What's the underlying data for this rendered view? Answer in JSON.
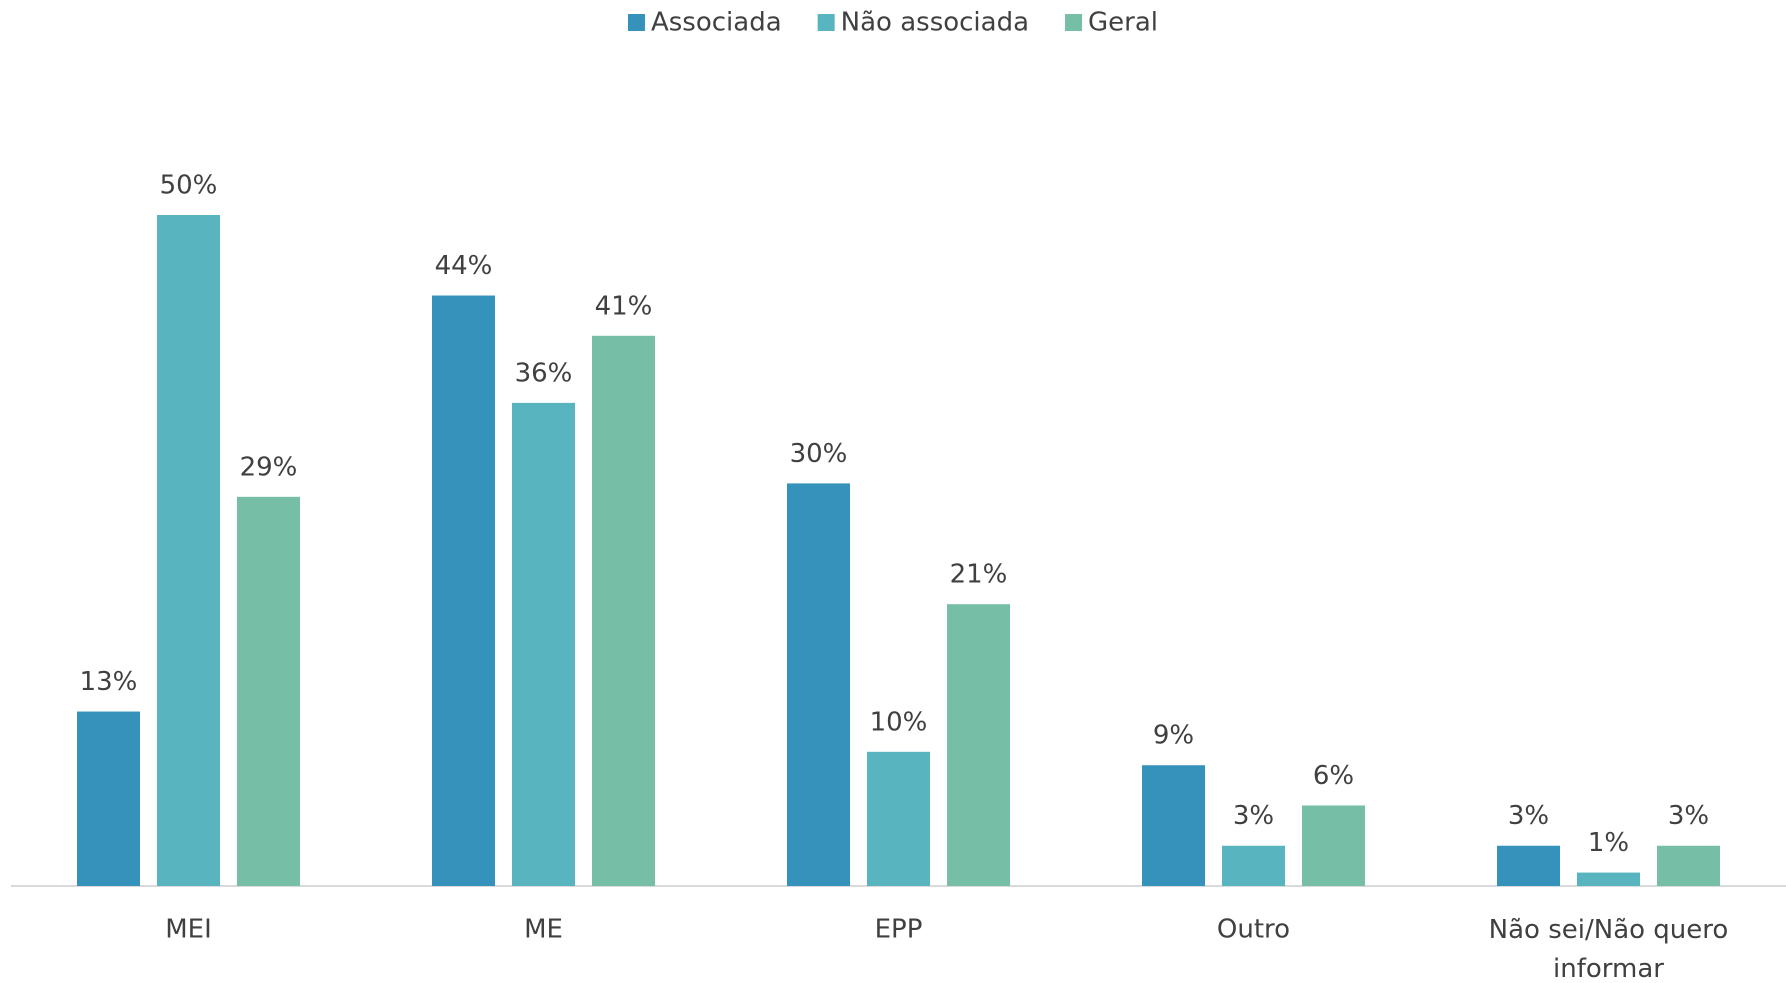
{
  "chart_data": {
    "type": "bar",
    "categories": [
      "MEI",
      "ME",
      "EPP",
      "Outro",
      "Não sei/Não quero informar"
    ],
    "series": [
      {
        "name": "Associada",
        "color": "#3593bb",
        "values": [
          13,
          44,
          30,
          9,
          3
        ],
        "value_labels": [
          "13%",
          "44%",
          "30%",
          "9%",
          "3%"
        ]
      },
      {
        "name": "Não associada",
        "color": "#58b5c0",
        "values": [
          50,
          36,
          10,
          3,
          1
        ],
        "value_labels": [
          "50%",
          "36%",
          "10%",
          "3%",
          "1%"
        ]
      },
      {
        "name": "Geral",
        "color": "#76bea5",
        "values": [
          29,
          41,
          21,
          6,
          3
        ],
        "value_labels": [
          "29%",
          "41%",
          "21%",
          "6%",
          "3%"
        ]
      }
    ],
    "legend": "top"
  }
}
